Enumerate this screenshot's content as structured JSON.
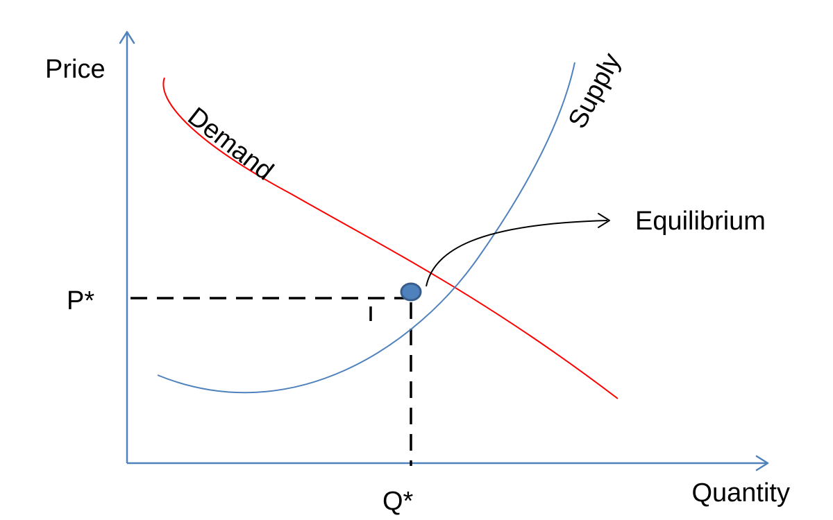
{
  "axes": {
    "y_label": "Price",
    "x_label": "Quantity"
  },
  "curves": {
    "demand_label": "Demand",
    "supply_label": "Supply"
  },
  "equilibrium": {
    "label": "Equilibrium",
    "price_label": "P*",
    "quantity_label": "Q*"
  },
  "colors": {
    "axis": "#4F81BD",
    "demand": "#FF0000",
    "supply": "#4F81BD",
    "guide": "#000000",
    "point_fill": "#4F81BD",
    "point_stroke": "#385D8A"
  }
}
